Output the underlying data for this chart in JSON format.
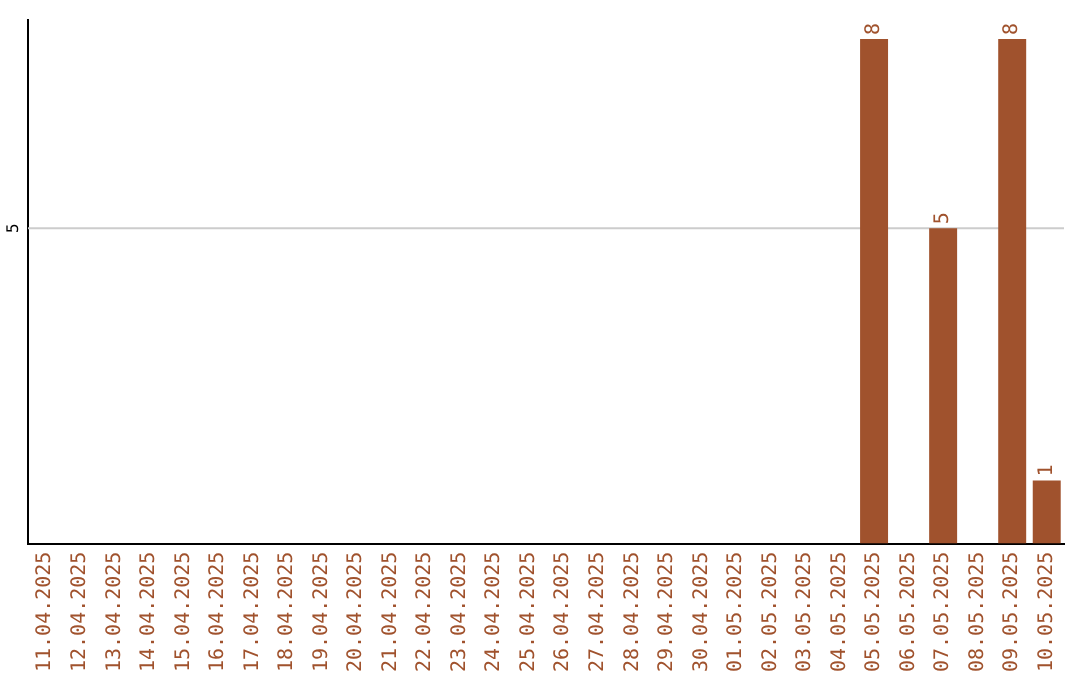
{
  "chart_data": {
    "type": "bar",
    "categories": [
      "11.04.2025",
      "12.04.2025",
      "13.04.2025",
      "14.04.2025",
      "15.04.2025",
      "16.04.2025",
      "17.04.2025",
      "18.04.2025",
      "19.04.2025",
      "20.04.2025",
      "21.04.2025",
      "22.04.2025",
      "23.04.2025",
      "24.04.2025",
      "25.04.2025",
      "26.04.2025",
      "27.04.2025",
      "28.04.2025",
      "29.04.2025",
      "30.04.2025",
      "01.05.2025",
      "02.05.2025",
      "03.05.2025",
      "04.05.2025",
      "05.05.2025",
      "06.05.2025",
      "07.05.2025",
      "08.05.2025",
      "09.05.2025",
      "10.05.2025"
    ],
    "values": [
      null,
      null,
      null,
      null,
      null,
      null,
      null,
      null,
      null,
      null,
      null,
      null,
      null,
      null,
      null,
      null,
      null,
      null,
      null,
      null,
      null,
      null,
      null,
      null,
      8,
      null,
      5,
      null,
      8,
      1
    ],
    "data_labels": true,
    "ylim": [
      0,
      8.3
    ],
    "color": "#a0522d",
    "ref_lines": [
      {
        "axis": "y",
        "value": 5,
        "label": "5",
        "color": "#cccccc"
      }
    ],
    "legend": false
  }
}
